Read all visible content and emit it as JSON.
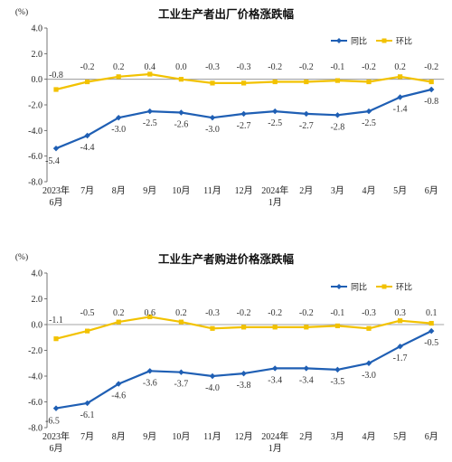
{
  "colors": {
    "yoy": "#1f5fb4",
    "mom": "#f2c200",
    "axis": "#555555",
    "grid": "#cccccc"
  },
  "chart_data": [
    {
      "type": "line",
      "title": "工业生产者出厂价格涨跌幅",
      "unit": "(%)",
      "categories": [
        [
          "2023年",
          "6月"
        ],
        [
          "7月"
        ],
        [
          "8月"
        ],
        [
          "9月"
        ],
        [
          "10月"
        ],
        [
          "11月"
        ],
        [
          "12月"
        ],
        [
          "2024年",
          "1月"
        ],
        [
          "2月"
        ],
        [
          "3月"
        ],
        [
          "4月"
        ],
        [
          "5月"
        ],
        [
          "6月"
        ]
      ],
      "ylim": [
        -8.0,
        4.0
      ],
      "yticks": [
        "4.0",
        "2.0",
        "0.0",
        "-2.0",
        "-4.0",
        "-6.0",
        "-8.0"
      ],
      "legend": "top-right",
      "series": [
        {
          "name": "同比",
          "key": "yoy",
          "marker": "diamond",
          "values": [
            -5.4,
            -4.4,
            -3.0,
            -2.5,
            -2.6,
            -3.0,
            -2.7,
            -2.5,
            -2.7,
            -2.8,
            -2.5,
            -1.4,
            -0.8
          ],
          "labels": [
            "-5.4",
            "-4.4",
            "-3.0",
            "-2.5",
            "-2.6",
            "-3.0",
            "-2.7",
            "-2.5",
            "-2.7",
            "-2.8",
            "-2.5",
            "-1.4",
            "-0.8"
          ]
        },
        {
          "name": "环比",
          "key": "mom",
          "marker": "square",
          "values": [
            -0.8,
            -0.2,
            0.2,
            0.4,
            0.0,
            -0.3,
            -0.3,
            -0.2,
            -0.2,
            -0.1,
            -0.2,
            0.2,
            -0.2
          ],
          "labels": [
            "-0.8",
            "-0.2",
            "0.2",
            "0.4",
            "0.0",
            "-0.3",
            "-0.3",
            "-0.2",
            "-0.2",
            "-0.1",
            "-0.2",
            "0.2",
            "-0.2"
          ]
        }
      ]
    },
    {
      "type": "line",
      "title": "工业生产者购进价格涨跌幅",
      "unit": "(%)",
      "categories": [
        [
          "2023年",
          "6月"
        ],
        [
          "7月"
        ],
        [
          "8月"
        ],
        [
          "9月"
        ],
        [
          "10月"
        ],
        [
          "11月"
        ],
        [
          "12月"
        ],
        [
          "2024年",
          "1月"
        ],
        [
          "2月"
        ],
        [
          "3月"
        ],
        [
          "4月"
        ],
        [
          "5月"
        ],
        [
          "6月"
        ]
      ],
      "ylim": [
        -8.0,
        4.0
      ],
      "yticks": [
        "4.0",
        "2.0",
        "0.0",
        "-2.0",
        "-4.0",
        "-6.0",
        "-8.0"
      ],
      "legend": "top-right",
      "series": [
        {
          "name": "同比",
          "key": "yoy",
          "marker": "diamond",
          "values": [
            -6.5,
            -6.1,
            -4.6,
            -3.6,
            -3.7,
            -4.0,
            -3.8,
            -3.4,
            -3.4,
            -3.5,
            -3.0,
            -1.7,
            -0.5
          ],
          "labels": [
            "-6.5",
            "-6.1",
            "-4.6",
            "-3.6",
            "-3.7",
            "-4.0",
            "-3.8",
            "-3.4",
            "-3.4",
            "-3.5",
            "-3.0",
            "-1.7",
            "-0.5"
          ]
        },
        {
          "name": "环比",
          "key": "mom",
          "marker": "square",
          "values": [
            -1.1,
            -0.5,
            0.2,
            0.6,
            0.2,
            -0.3,
            -0.2,
            -0.2,
            -0.2,
            -0.1,
            -0.3,
            0.3,
            0.1
          ],
          "labels": [
            "-1.1",
            "-0.5",
            "0.2",
            "0.6",
            "0.2",
            "-0.3",
            "-0.2",
            "-0.2",
            "-0.2",
            "-0.1",
            "-0.3",
            "0.3",
            "0.1"
          ]
        }
      ]
    }
  ]
}
